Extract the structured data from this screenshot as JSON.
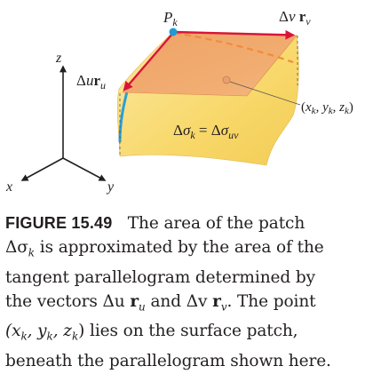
{
  "diagram": {
    "point_label": "P",
    "point_label_sub": "k",
    "vec_v_label": "Δv r",
    "vec_v_sub": "v",
    "vec_u_label": "Δu r",
    "vec_u_sub": "u",
    "surface_eq": "Δσ",
    "surface_eq_sub1": "k",
    "surface_eq_mid": " = Δσ",
    "surface_eq_sub2": "uv",
    "point_coords": "(x",
    "point_coords_k1": "k",
    "point_coords_y": ", y",
    "point_coords_k2": "k",
    "point_coords_z": ", z",
    "point_coords_k3": "k",
    "point_coords_close": ")",
    "axis_x": "x",
    "axis_y": "y",
    "axis_z": "z"
  },
  "caption": {
    "figure_label": "FIGURE 15.49",
    "line1": "The area of the patch",
    "line2a": "Δσ",
    "line2a_sub": "k",
    "line2b": " is approximated by the area of the",
    "line3": "tangent parallelogram determined by",
    "line4a": "the vectors ",
    "line4_du": "Δu",
    "line4_ru": "r",
    "line4_ru_sub": "u",
    "line4_and": " and ",
    "line4_dv": "Δv",
    "line4_rv": "r",
    "line4_rv_sub": "v",
    "line4_end": ". The point",
    "line5a": "(x",
    "line5_k1": "k",
    "line5_y": ", y",
    "line5_k2": "k",
    "line5_z": ", z",
    "line5_k3": "k",
    "line5_end": ") lies on the surface patch,",
    "line6": "beneath the parallelogram shown here."
  },
  "colors": {
    "surface_yellow": "#f9db72",
    "surface_yellow_light": "#fbe79c",
    "parallelogram": "#e8935a",
    "vector_red": "#d9143a",
    "point_blue": "#1f9ad6",
    "edge_blue": "#2a9fd8",
    "text": "#231f20"
  }
}
